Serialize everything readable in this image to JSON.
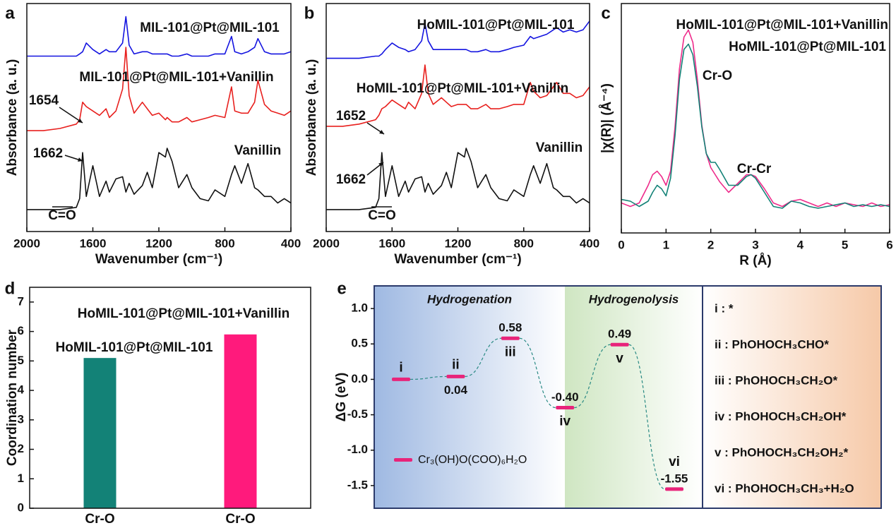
{
  "chart_data": [
    {
      "type": "line",
      "panel": "a",
      "x_label": "Wavenumber (cm⁻¹)",
      "y_label": "Absorbance (a. u.)",
      "x": [
        2000,
        1900,
        1800,
        1700,
        1680,
        1662,
        1640,
        1600,
        1560,
        1520,
        1500,
        1460,
        1420,
        1400,
        1380,
        1350,
        1300,
        1270,
        1240,
        1200,
        1160,
        1150,
        1120,
        1080,
        1030,
        1000,
        950,
        900,
        860,
        800,
        760,
        740,
        700,
        660,
        620,
        600,
        560,
        520,
        480,
        440,
        400
      ],
      "xlim": [
        2000,
        400
      ],
      "xticks": [
        2000,
        1600,
        1200,
        800,
        400
      ],
      "ylim": [
        0,
        10.4
      ],
      "series": [
        {
          "name": "MIL-101@Pt@MIL-101",
          "color": "#1414e0",
          "values": [
            8.0,
            8.0,
            8.0,
            8.0,
            8.1,
            8.2,
            8.6,
            8.3,
            8.1,
            8.3,
            8.2,
            8.2,
            8.6,
            9.8,
            8.5,
            8.1,
            8.2,
            8.2,
            8.1,
            8.1,
            8.1,
            8.1,
            8.0,
            8.0,
            8.1,
            8.0,
            8.0,
            8.0,
            8.1,
            8.1,
            8.9,
            8.2,
            8.1,
            8.2,
            8.4,
            8.8,
            8.2,
            8.1,
            8.1,
            8.1,
            8.2
          ]
        },
        {
          "name": "MIL-101@Pt@MIL-101+Vanillin",
          "color": "#e8201e",
          "values": [
            4.6,
            4.6,
            4.7,
            4.9,
            5.1,
            5.9,
            5.7,
            5.5,
            5.3,
            5.6,
            5.2,
            5.5,
            6.5,
            8.4,
            6.2,
            5.4,
            5.9,
            5.6,
            5.3,
            5.4,
            5.1,
            5.2,
            5.0,
            5.0,
            5.2,
            5.0,
            5.1,
            5.2,
            5.3,
            5.2,
            6.6,
            5.5,
            5.4,
            5.4,
            5.9,
            6.9,
            5.8,
            5.5,
            5.4,
            5.3,
            5.5
          ]
        },
        {
          "name": "Vanillin",
          "color": "#111111",
          "values": [
            1.0,
            1.0,
            1.0,
            1.1,
            1.5,
            3.6,
            1.6,
            3.0,
            1.6,
            2.3,
            1.8,
            2.4,
            2.5,
            1.8,
            2.2,
            1.7,
            2.1,
            2.7,
            2.0,
            3.6,
            3.4,
            3.8,
            3.2,
            2.0,
            2.6,
            2.0,
            1.5,
            1.4,
            1.9,
            1.6,
            2.6,
            3.0,
            2.2,
            3.1,
            2.0,
            1.9,
            1.6,
            1.6,
            1.3,
            1.5,
            1.3
          ]
        }
      ],
      "annotations": [
        {
          "text": "1654"
        },
        {
          "text": "1662"
        },
        {
          "text": "C=O"
        }
      ]
    },
    {
      "type": "line",
      "panel": "b",
      "x_label": "Wavenumber (cm⁻¹)",
      "y_label": "Absorbance (a. u.)",
      "x": [
        2000,
        1900,
        1800,
        1700,
        1680,
        1662,
        1640,
        1600,
        1560,
        1520,
        1500,
        1460,
        1420,
        1400,
        1380,
        1350,
        1300,
        1270,
        1240,
        1200,
        1160,
        1150,
        1120,
        1080,
        1030,
        1000,
        950,
        900,
        860,
        800,
        760,
        740,
        700,
        660,
        620,
        600,
        560,
        520,
        480,
        440,
        400
      ],
      "xlim": [
        2000,
        400
      ],
      "xticks": [
        2000,
        1600,
        1200,
        800,
        400
      ],
      "ylim": [
        0,
        10.4
      ],
      "series": [
        {
          "name": "HoMIL-101@Pt@MIL-101",
          "color": "#1414e0",
          "values": [
            7.9,
            7.9,
            7.9,
            8.0,
            8.0,
            8.1,
            8.3,
            8.6,
            8.4,
            8.3,
            8.2,
            8.3,
            8.7,
            9.5,
            8.7,
            8.3,
            8.3,
            8.3,
            8.3,
            8.3,
            8.3,
            8.3,
            8.2,
            8.2,
            8.3,
            8.2,
            8.2,
            8.3,
            8.4,
            8.5,
            8.9,
            8.8,
            8.9,
            9.0,
            9.2,
            9.3,
            9.1,
            9.2,
            9.1,
            9.2,
            9.6
          ]
        },
        {
          "name": "HoMIL-101@Pt@MIL-101+Vanillin",
          "color": "#e8201e",
          "values": [
            4.8,
            4.8,
            4.9,
            5.1,
            5.3,
            5.6,
            5.7,
            6.0,
            5.8,
            5.6,
            5.9,
            5.6,
            6.3,
            7.6,
            6.3,
            5.8,
            6.1,
            5.9,
            5.7,
            5.8,
            5.8,
            5.8,
            5.6,
            5.6,
            5.8,
            5.6,
            5.6,
            5.7,
            5.8,
            5.8,
            6.8,
            6.4,
            6.1,
            6.2,
            6.6,
            6.8,
            6.3,
            6.3,
            6.1,
            6.2,
            6.6
          ]
        },
        {
          "name": "Vanillin",
          "color": "#111111",
          "values": [
            1.0,
            1.0,
            1.0,
            1.1,
            1.5,
            3.6,
            1.6,
            3.0,
            1.6,
            2.3,
            1.8,
            2.4,
            2.5,
            1.8,
            2.2,
            1.7,
            2.1,
            2.7,
            2.0,
            3.6,
            3.4,
            3.8,
            3.2,
            2.0,
            2.6,
            2.0,
            1.5,
            1.4,
            1.9,
            1.6,
            2.6,
            3.0,
            2.2,
            3.1,
            2.0,
            1.9,
            1.6,
            1.6,
            1.3,
            1.5,
            1.3
          ]
        }
      ],
      "annotations": [
        {
          "text": "1652"
        },
        {
          "text": "1662"
        },
        {
          "text": "C=O"
        }
      ]
    },
    {
      "type": "line",
      "panel": "c",
      "x_label": "R (Å)",
      "y_label": "|χ(R)| (Å⁻⁴)",
      "x": [
        0,
        0.2,
        0.4,
        0.6,
        0.7,
        0.8,
        0.9,
        1.0,
        1.1,
        1.2,
        1.3,
        1.4,
        1.5,
        1.6,
        1.7,
        1.8,
        1.9,
        2.0,
        2.1,
        2.2,
        2.4,
        2.6,
        2.8,
        2.9,
        3.0,
        3.2,
        3.4,
        3.6,
        3.8,
        4.0,
        4.2,
        4.4,
        4.6,
        4.8,
        5.0,
        5.2,
        5.4,
        5.6,
        5.8,
        6.0
      ],
      "xlim": [
        0,
        6
      ],
      "xticks": [
        0,
        1,
        2,
        3,
        4,
        5,
        6
      ],
      "ylim": [
        -0.15,
        1.15
      ],
      "series": [
        {
          "name": "HoMIL-101@Pt@MIL-101+Vanillin",
          "color": "#ee2a8a",
          "values": [
            0.02,
            0.0,
            0.02,
            0.12,
            0.18,
            0.2,
            0.17,
            0.12,
            0.2,
            0.45,
            0.78,
            0.96,
            1.0,
            0.93,
            0.72,
            0.46,
            0.3,
            0.22,
            0.18,
            0.14,
            0.08,
            0.13,
            0.18,
            0.18,
            0.17,
            0.1,
            0.02,
            0.0,
            0.03,
            0.04,
            0.02,
            0.0,
            0.02,
            0.0,
            0.02,
            0.01,
            0.0,
            0.02,
            0.0,
            0.01
          ]
        },
        {
          "name": "HoMIL-101@Pt@MIL-101",
          "color": "#138277",
          "values": [
            0.04,
            0.03,
            0.0,
            0.03,
            0.08,
            0.12,
            0.1,
            0.06,
            0.16,
            0.4,
            0.72,
            0.89,
            0.92,
            0.86,
            0.68,
            0.45,
            0.3,
            0.25,
            0.25,
            0.21,
            0.12,
            0.12,
            0.17,
            0.18,
            0.16,
            0.08,
            0.0,
            -0.01,
            0.03,
            0.02,
            0.0,
            -0.01,
            0.0,
            0.01,
            0.02,
            0.0,
            0.01,
            0.0,
            0.01,
            0.0
          ]
        }
      ],
      "annotations": [
        {
          "text": "Cr-O"
        },
        {
          "text": "Cr-Cr"
        }
      ]
    },
    {
      "type": "bar",
      "panel": "d",
      "y_label": "Coordination number",
      "categories": [
        "Cr-O",
        "Cr-O"
      ],
      "ylim": [
        0,
        7.5
      ],
      "yticks": [
        0,
        1,
        2,
        3,
        4,
        5,
        6,
        7
      ],
      "series": [
        {
          "name": "HoMIL-101@Pt@MIL-101",
          "color": "#138277",
          "values": [
            5.1,
            null
          ]
        },
        {
          "name": "HoMIL-101@Pt@MIL-101+Vanillin",
          "color": "#ff1a7c",
          "values": [
            null,
            5.9
          ]
        }
      ]
    },
    {
      "type": "energy",
      "panel": "e",
      "y_label": "ΔG (eV)",
      "categories": [
        "i",
        "ii",
        "iii",
        "iv",
        "v",
        "vi"
      ],
      "ylim": [
        -1.82,
        1.32
      ],
      "yticks": [
        {
          "value": 1,
          "label": "1.0"
        },
        0.5,
        {
          "value": 0,
          "label": "0.0"
        },
        -0.5,
        {
          "value": -1,
          "label": "-1.0"
        },
        -1.5
      ],
      "series": [
        {
          "name": "Cr₃(OH)O(COO)₆H₂O",
          "color": "#e8247a",
          "values": [
            0,
            0.04,
            0.58,
            -0.4,
            0.49,
            -1.55
          ],
          "value_labels": [
            null,
            "0.04",
            "0.58",
            "-0.40",
            "0.49",
            "-1.55"
          ]
        }
      ],
      "regions": [
        "Hydrogenation",
        "Hydrogenolysis"
      ],
      "species": [
        "i : *",
        "ii : PhOHOCH₃CHO*",
        "iii : PhOHOCH₃CH₂O*",
        "iv : PhOHOCH₃CH₂OH*",
        "v : PhOHOCH₃CH₂OH₂*",
        "vi : PhOHOCH₃CH₃+H₂O"
      ]
    }
  ]
}
